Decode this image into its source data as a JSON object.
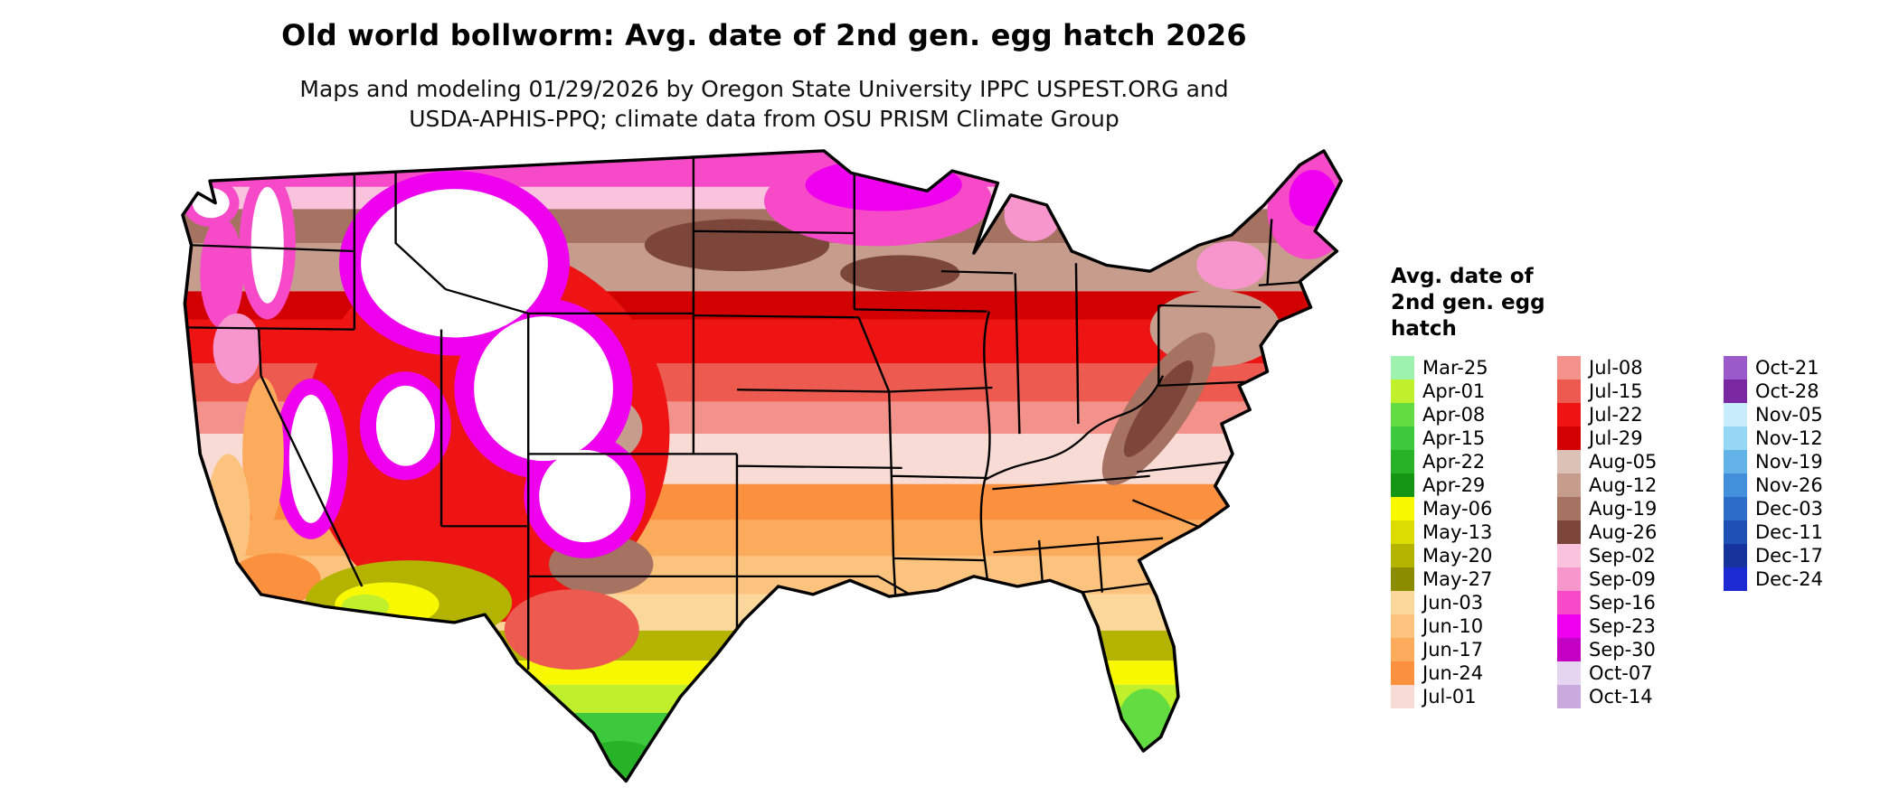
{
  "header": {
    "title": "Old world bollworm: Avg. date of 2nd gen. egg hatch 2026",
    "subtitle": "Maps and modeling 01/29/2026 by Oregon State University IPPC USPEST.ORG and\nUSDA-APHIS-PPQ; climate data from OSU PRISM Climate Group"
  },
  "legend": {
    "title": "Avg. date of\n2nd gen. egg\nhatch",
    "columns": [
      [
        {
          "label": "Mar-25",
          "color": "#9df2ae"
        },
        {
          "label": "Apr-01",
          "color": "#c0f02c"
        },
        {
          "label": "Apr-08",
          "color": "#62dc40"
        },
        {
          "label": "Apr-15",
          "color": "#3cca3c"
        },
        {
          "label": "Apr-22",
          "color": "#28b228"
        },
        {
          "label": "Apr-29",
          "color": "#149614"
        },
        {
          "label": "May-06",
          "color": "#f8f800"
        },
        {
          "label": "May-13",
          "color": "#dcdc00"
        },
        {
          "label": "May-20",
          "color": "#b4b400"
        },
        {
          "label": "May-27",
          "color": "#8c8c00"
        },
        {
          "label": "Jun-03",
          "color": "#fcd79c"
        },
        {
          "label": "Jun-10",
          "color": "#fcc37e"
        },
        {
          "label": "Jun-17",
          "color": "#fcab5c"
        },
        {
          "label": "Jun-24",
          "color": "#fb903e"
        },
        {
          "label": "Jul-01",
          "color": "#f7dbd4"
        }
      ],
      [
        {
          "label": "Jul-08",
          "color": "#f3928a"
        },
        {
          "label": "Jul-15",
          "color": "#ec5a50"
        },
        {
          "label": "Jul-22",
          "color": "#ee1414"
        },
        {
          "label": "Jul-29",
          "color": "#d20000"
        },
        {
          "label": "Aug-05",
          "color": "#dcc2b6"
        },
        {
          "label": "Aug-12",
          "color": "#c69c8c"
        },
        {
          "label": "Aug-19",
          "color": "#a67262"
        },
        {
          "label": "Aug-26",
          "color": "#7c463a"
        },
        {
          "label": "Sep-02",
          "color": "#f9c2dd"
        },
        {
          "label": "Sep-09",
          "color": "#f795cd"
        },
        {
          "label": "Sep-16",
          "color": "#f74ac8"
        },
        {
          "label": "Sep-23",
          "color": "#ee00ee"
        },
        {
          "label": "Sep-30",
          "color": "#c400c4"
        },
        {
          "label": "Oct-07",
          "color": "#e5d5f0"
        },
        {
          "label": "Oct-14",
          "color": "#c9a9de"
        }
      ],
      [
        {
          "label": "Oct-21",
          "color": "#9a5ac9"
        },
        {
          "label": "Oct-28",
          "color": "#7a28a2"
        },
        {
          "label": "Nov-05",
          "color": "#c9ecfa"
        },
        {
          "label": "Nov-12",
          "color": "#96d7f4"
        },
        {
          "label": "Nov-19",
          "color": "#63b3e9"
        },
        {
          "label": "Nov-26",
          "color": "#4290dc"
        },
        {
          "label": "Dec-03",
          "color": "#2d6cc8"
        },
        {
          "label": "Dec-11",
          "color": "#1f50b4"
        },
        {
          "label": "Dec-17",
          "color": "#16339b"
        },
        {
          "label": "Dec-24",
          "color": "#1c2ad4"
        }
      ]
    ]
  },
  "map": {
    "region": "Continental United States",
    "outline_color": "#000000",
    "no_data_color": "#ffffff"
  },
  "chart_data": {
    "type": "heatmap",
    "title": "Old world bollworm: Avg. date of 2nd gen. egg hatch 2026",
    "geography": "Continental United States with state boundaries",
    "unit": "average date of 2nd generation egg hatch (weekly color classes)",
    "legend_position": "right",
    "regional_pattern": [
      {
        "area": "Southern Texas (Rio Grande Valley) and southern Florida",
        "value": "Apr-01 to Apr-29 (greens)"
      },
      {
        "area": "Gulf-near south Texas, central Florida, southwest Arizona deserts",
        "value": "May-06 to May-27 (yellow to olive)"
      },
      {
        "area": "Deep South, central Texas, California Central Valley and coast",
        "value": "Jun-03 to Jun-24 (oranges)"
      },
      {
        "area": "Mid-South: Oklahoma, Arkansas, Tennessee, Carolina piedmont",
        "value": "Jul-01 (pale pink)"
      },
      {
        "area": "Central Plains and Mid-Atlantic: Kansas, Missouri, Nebraska, Virginia, New Jersey",
        "value": "Jul-08 to Jul-29 (salmon to dark red)"
      },
      {
        "area": "Northern Plains, upper Midwest, Appalachians, interior Northeast",
        "value": "Aug-05 to Aug-26 (browns)"
      },
      {
        "area": "Far northern Minnesota/Wisconsin/Michigan, northern Maine, mountain margins of the West",
        "value": "Sep-02 to Sep-30 (pinks to magenta)"
      },
      {
        "area": "High Rockies, Cascades, Sierra Nevada, cold Great Basin uplands",
        "value": "no hatch (white)"
      }
    ]
  }
}
